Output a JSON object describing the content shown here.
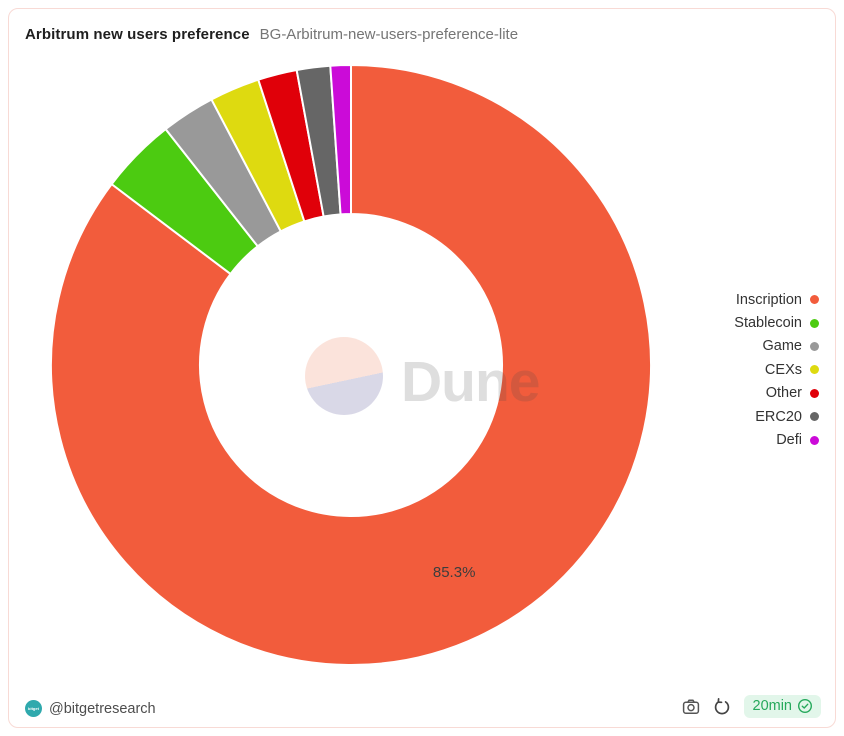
{
  "header": {
    "title": "Arbitrum new users preference",
    "subtitle": "BG-Arbitrum-new-users-preference-lite"
  },
  "chart_data": {
    "type": "pie",
    "donut": true,
    "title": "Arbitrum new users preference",
    "direction": "clockwise",
    "start_angle_deg": 0,
    "inner_radius_ratio": 0.5,
    "legend_position": "right",
    "visible_slice_label": "85.3%",
    "series": [
      {
        "name": "Inscription",
        "value": 85.3,
        "label": "85.3%",
        "color": "#F25C3C"
      },
      {
        "name": "Stablecoin",
        "value": 4.1,
        "color": "#4CCB11"
      },
      {
        "name": "Game",
        "value": 2.9,
        "color": "#999999"
      },
      {
        "name": "CEXs",
        "value": 2.7,
        "color": "#DEDA10"
      },
      {
        "name": "Other",
        "value": 2.1,
        "color": "#E00009"
      },
      {
        "name": "ERC20",
        "value": 1.8,
        "color": "#666666"
      },
      {
        "name": "Defi",
        "value": 1.1,
        "color": "#CB0BD8"
      }
    ]
  },
  "watermark": {
    "text": "Dune"
  },
  "footer": {
    "author_handle": "@bitgetresearch",
    "avatar_text": "bitget",
    "refresh_badge": "20min"
  },
  "colors": {
    "card_border": "#F8DAD5",
    "badge_bg": "#E2F6EA",
    "badge_green": "#26A95C",
    "avatar_teal": "#2FA9AD",
    "watermark_pink": "#FBE3DB",
    "watermark_lavender": "#D9D8E7"
  }
}
